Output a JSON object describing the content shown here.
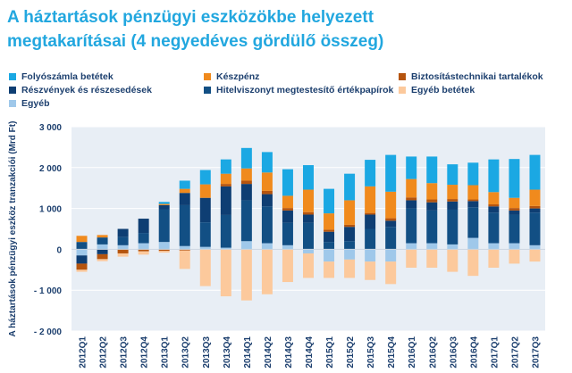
{
  "title_lines": [
    "A háztartások pénzügyi eszközökbe helyezett",
    "megtakarításai (4 negyedéves gördülő összeg)"
  ],
  "colors": {
    "title": "#22a7df",
    "text": "#1c3f6e",
    "plot_bg": "#e8eef5",
    "grid": "#ffffff"
  },
  "legend": [
    {
      "key": "folyoszamla",
      "label": "Folyószámla betétek",
      "color": "#1ba8e3"
    },
    {
      "key": "keszpenz",
      "label": "Készpénz",
      "color": "#f08a1d"
    },
    {
      "key": "biztositas",
      "label": "Biztosítástechnikai tartalékok",
      "color": "#b5540e"
    },
    {
      "key": "reszveny",
      "label": "Részvények és részesedések",
      "color": "#0e3e73"
    },
    {
      "key": "hitelviszony",
      "label": "Hitelviszonyt megtestesítő értékpapírok",
      "color": "#124f84"
    },
    {
      "key": "egyeb_betet",
      "label": "Egyéb betétek",
      "color": "#fcc99c"
    },
    {
      "key": "egyeb",
      "label": "Egyéb",
      "color": "#9fc8ea"
    }
  ],
  "chart_data": {
    "type": "bar",
    "stacked": true,
    "ylabel": "A háztartások pénzügyi eszköz tranzakciói (Mrd Ft)",
    "ylim": [
      -2000,
      3000
    ],
    "yticks": [
      -2000,
      -1000,
      0,
      1000,
      2000,
      3000
    ],
    "ytick_labels": [
      "- 2 000",
      "- 1 000",
      "0",
      "1 000",
      "2 000",
      "3 000"
    ],
    "grid": true,
    "categories": [
      "2012Q1",
      "2012Q2",
      "2012Q3",
      "2012Q4",
      "2013Q1",
      "2013Q2",
      "2013Q3",
      "2013Q4",
      "2014Q1",
      "2014Q2",
      "2014Q3",
      "2014Q4",
      "2015Q1",
      "2015Q2",
      "2015Q3",
      "2015Q4",
      "2016Q1",
      "2016Q2",
      "2016Q3",
      "2016Q4",
      "2017Q1",
      "2017Q2",
      "2017Q3"
    ],
    "series": [
      {
        "name": "Egyéb",
        "key": "egyeb",
        "values": [
          -150,
          120,
          100,
          150,
          180,
          80,
          60,
          40,
          200,
          150,
          100,
          -100,
          -300,
          -250,
          -300,
          -300,
          150,
          150,
          120,
          280,
          150,
          150,
          100
        ]
      },
      {
        "name": "Hitelviszonyt megtestesítő értékpapírok",
        "key": "hitelviszony",
        "values": [
          180,
          170,
          200,
          250,
          800,
          1000,
          600,
          800,
          1000,
          900,
          550,
          650,
          180,
          200,
          500,
          550,
          850,
          800,
          850,
          750,
          750,
          700,
          800
        ]
      },
      {
        "name": "Részvények és részesedések",
        "key": "reszveny",
        "values": [
          -200,
          -120,
          200,
          350,
          100,
          300,
          600,
          700,
          400,
          300,
          300,
          200,
          250,
          350,
          350,
          150,
          200,
          200,
          200,
          150,
          150,
          100,
          100
        ]
      },
      {
        "name": "Biztosítástechnikai tartalékok",
        "key": "biztositas",
        "values": [
          -150,
          -120,
          -100,
          -50,
          -40,
          -30,
          0,
          60,
          80,
          80,
          60,
          60,
          50,
          50,
          40,
          60,
          70,
          70,
          60,
          40,
          50,
          60,
          60
        ]
      },
      {
        "name": "Készpénz",
        "key": "keszpenz",
        "values": [
          150,
          60,
          0,
          0,
          30,
          100,
          330,
          250,
          300,
          450,
          300,
          550,
          400,
          600,
          650,
          650,
          450,
          400,
          350,
          350,
          300,
          250,
          400
        ]
      },
      {
        "name": "Folyószámla betétek",
        "key": "folyoszamla",
        "values": [
          0,
          0,
          0,
          0,
          50,
          200,
          350,
          350,
          500,
          500,
          650,
          600,
          600,
          650,
          650,
          900,
          550,
          650,
          500,
          550,
          800,
          950,
          850
        ]
      },
      {
        "name": "Egyéb betétek",
        "key": "egyeb_betet",
        "values": [
          -50,
          -50,
          -80,
          -80,
          -40,
          -450,
          -900,
          -1150,
          -1250,
          -1100,
          -800,
          -600,
          -400,
          -450,
          -450,
          -550,
          -450,
          -450,
          -550,
          -650,
          -450,
          -350,
          -300
        ]
      }
    ]
  }
}
